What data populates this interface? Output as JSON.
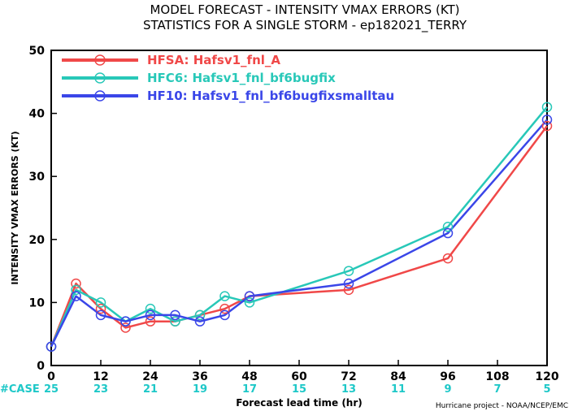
{
  "chart_data": {
    "type": "line",
    "title": [
      "MODEL FORECAST - INTENSITY VMAX ERRORS (KT)",
      "STATISTICS FOR A SINGLE STORM - ep182021_TERRY"
    ],
    "xlabel": "Forecast lead time (hr)",
    "ylabel": "INTENSITY VMAX ERRORS (KT)",
    "xlim": [
      0,
      120
    ],
    "ylim": [
      0,
      50
    ],
    "xticks": [
      0,
      12,
      24,
      36,
      48,
      60,
      72,
      84,
      96,
      108,
      120
    ],
    "yticks": [
      0,
      10,
      20,
      30,
      40,
      50
    ],
    "legend_position": "top-left",
    "grid": false,
    "series": [
      {
        "name": "HFSA: Hafsv1_fnl_A",
        "color": "#f04848",
        "x": [
          0,
          6,
          12,
          18,
          24,
          30,
          36,
          42,
          48,
          72,
          96,
          120
        ],
        "y": [
          3,
          13,
          9,
          6,
          7,
          7,
          8,
          9,
          11,
          12,
          17,
          38
        ]
      },
      {
        "name": "HFC6: Hafsv1_fnl_bf6bugfix",
        "color": "#28c8b8",
        "x": [
          0,
          6,
          12,
          18,
          24,
          30,
          36,
          42,
          48,
          72,
          96,
          120
        ],
        "y": [
          3,
          12,
          10,
          7,
          9,
          7,
          8,
          11,
          10,
          15,
          22,
          41
        ]
      },
      {
        "name": "HF10: Hafsv1_fnl_bf6bugfixsmalltau",
        "color": "#3a46e8",
        "x": [
          0,
          6,
          12,
          18,
          24,
          30,
          36,
          42,
          48,
          72,
          96,
          120
        ],
        "y": [
          3,
          11,
          8,
          7,
          8,
          8,
          7,
          8,
          11,
          13,
          21,
          39
        ]
      }
    ],
    "case_label": "#CASE",
    "case_x": [
      0,
      12,
      24,
      36,
      48,
      60,
      72,
      84,
      96,
      108,
      120
    ],
    "case_counts": [
      25,
      23,
      21,
      19,
      17,
      15,
      13,
      11,
      9,
      7,
      5
    ],
    "case_color": "#1ec8c8",
    "credit": "Hurricane project - NOAA/NCEP/EMC"
  }
}
